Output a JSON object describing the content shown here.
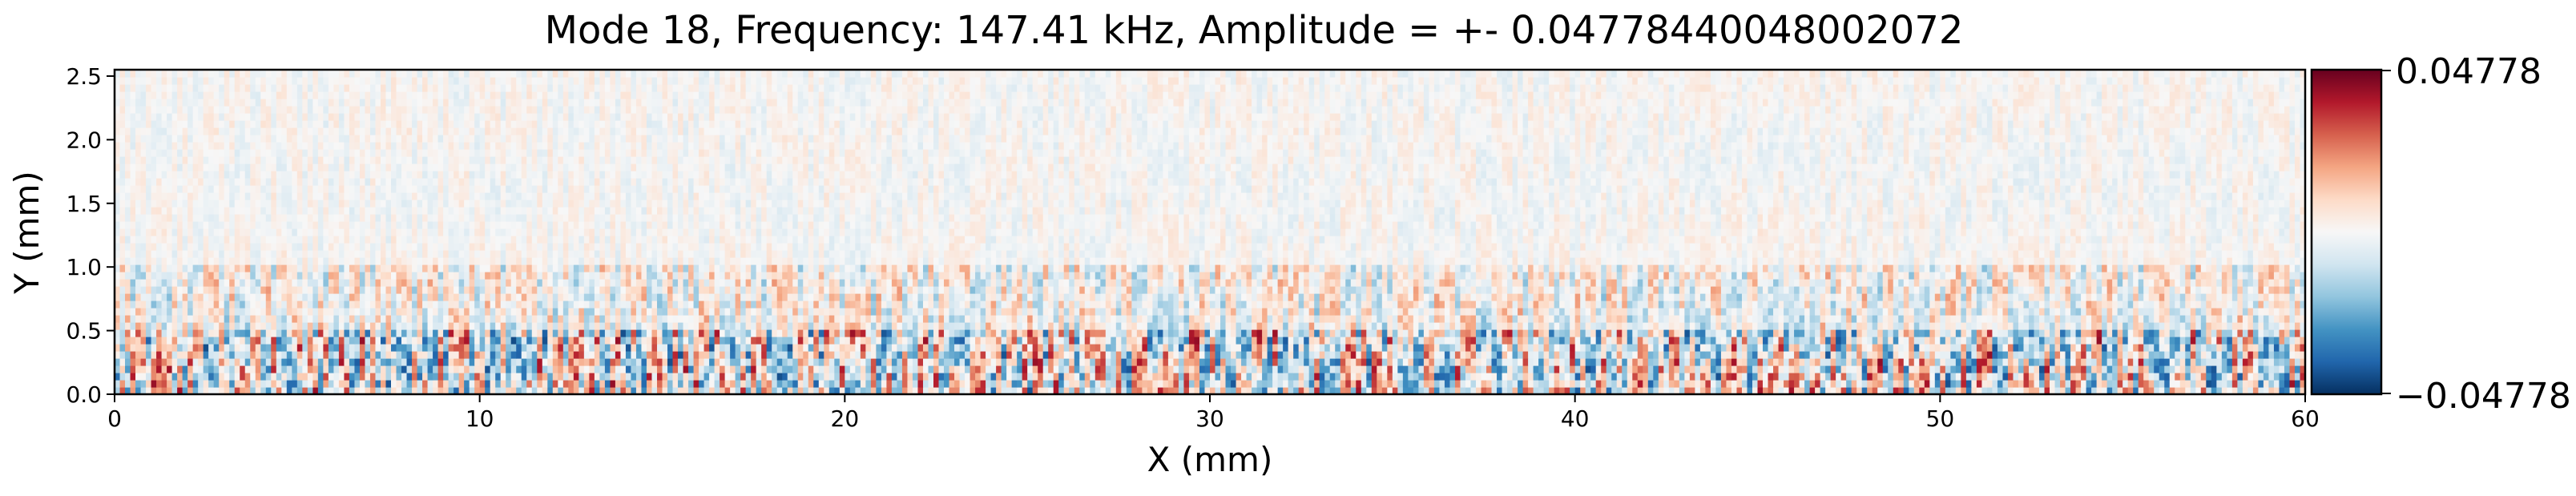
{
  "chart_data": {
    "type": "heatmap",
    "title": "Mode 18, Frequency: 147.41 kHz, Amplitude = +- 0.04778440048002072",
    "xlabel": "X (mm)",
    "ylabel": "Y (mm)",
    "xlim": [
      0,
      60
    ],
    "ylim": [
      0,
      2.55
    ],
    "x_ticks": [
      0,
      10,
      20,
      30,
      40,
      50,
      60
    ],
    "x_tick_labels": [
      "0",
      "10",
      "20",
      "30",
      "40",
      "50",
      "60"
    ],
    "y_ticks": [
      0.0,
      0.5,
      1.0,
      1.5,
      2.0,
      2.5
    ],
    "y_tick_labels": [
      "0.0",
      "0.5",
      "1.0",
      "1.5",
      "2.0",
      "2.5"
    ],
    "colormap": "RdBu_r",
    "colorbar": {
      "min": -0.04778,
      "max": 0.04778,
      "min_label": "−0.04778",
      "max_label": "0.04778",
      "stops": [
        "#053061",
        "#2166ac",
        "#4393c3",
        "#92c5de",
        "#d1e5f0",
        "#f7f7f7",
        "#fddbc7",
        "#f4a582",
        "#d6604d",
        "#b2182b",
        "#67001f"
      ]
    },
    "field_description_samples": [
      {
        "y_range": [
          0.0,
          0.5
        ],
        "relative_amplitude": 0.9
      },
      {
        "y_range": [
          0.5,
          1.0
        ],
        "relative_amplitude": 0.45
      },
      {
        "y_range": [
          1.0,
          2.55
        ],
        "relative_amplitude": 0.15
      }
    ]
  }
}
